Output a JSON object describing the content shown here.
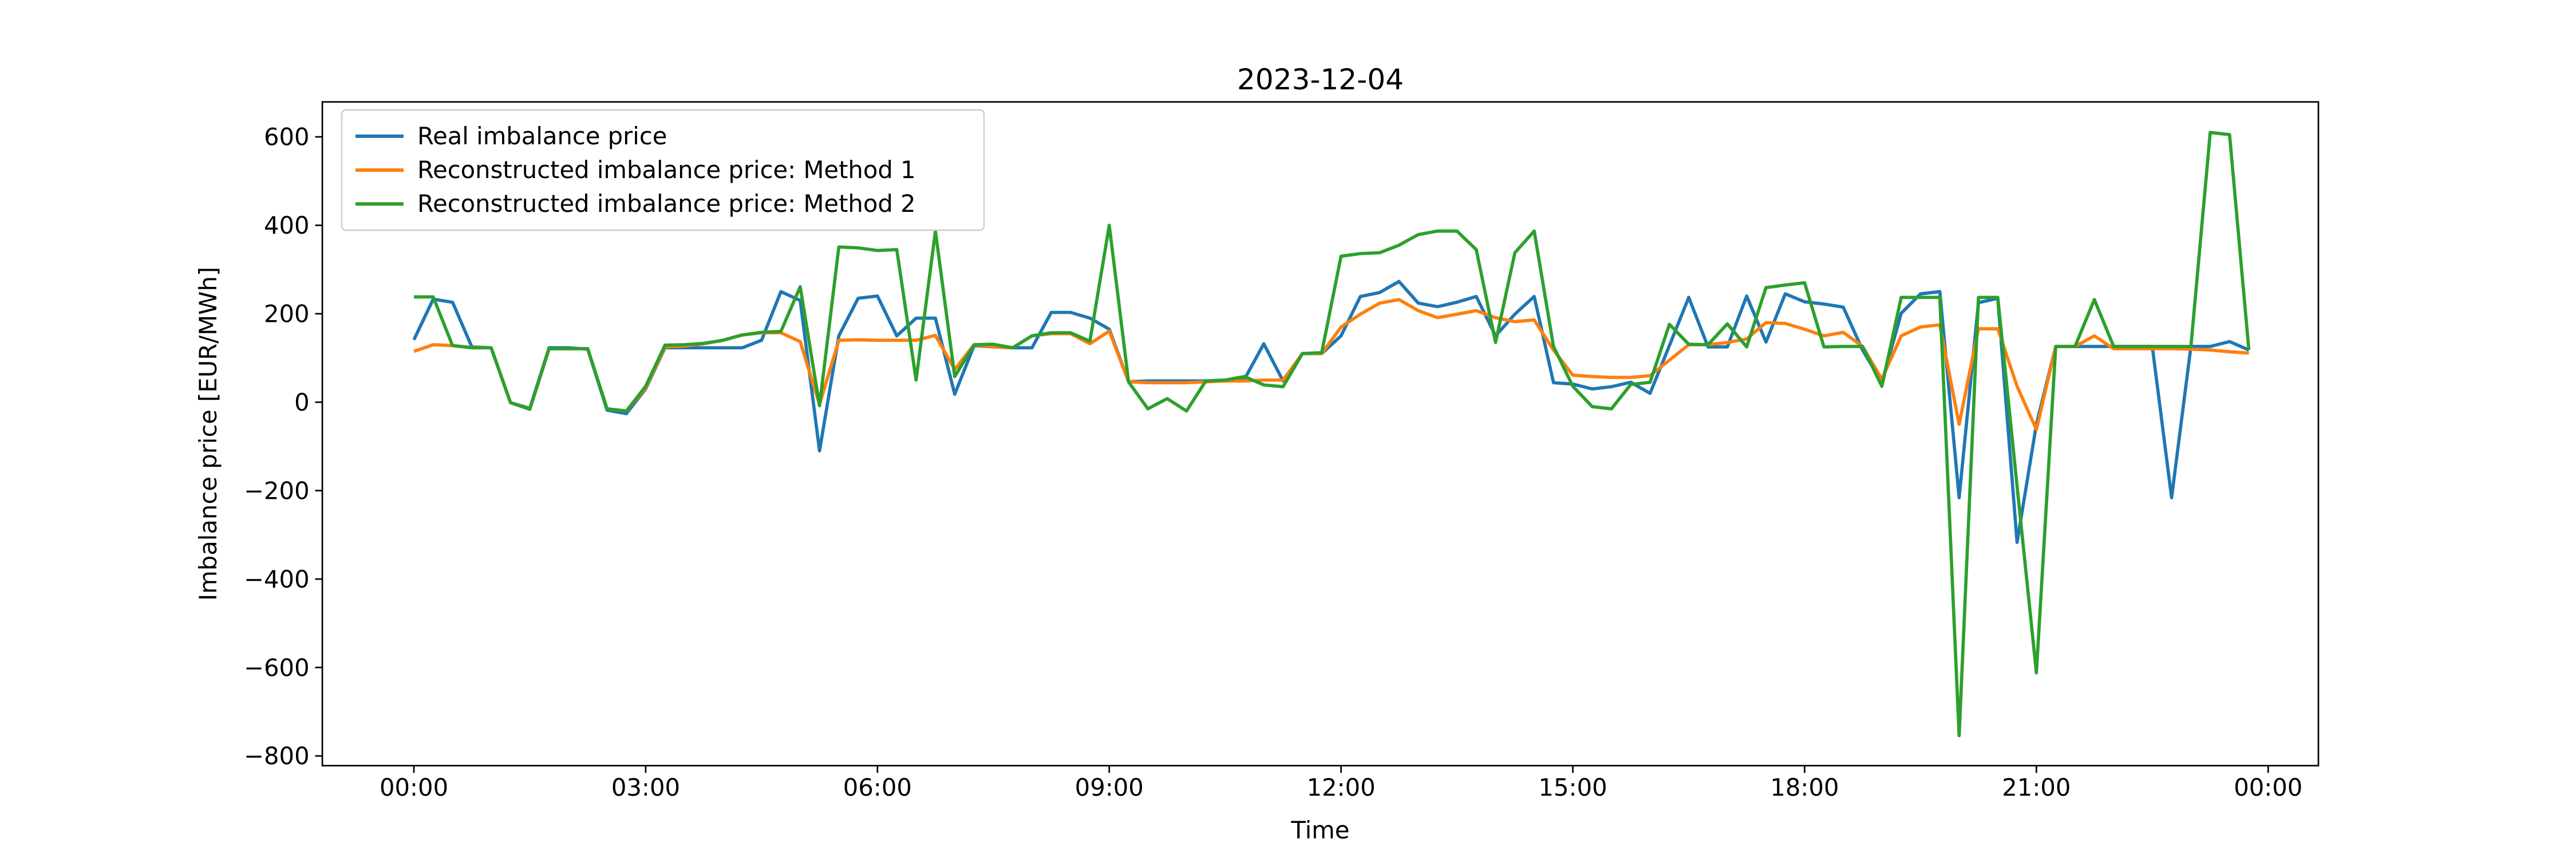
{
  "figure": {
    "background": "#ffffff",
    "spine_color": "#000000",
    "tick_color": "#000000",
    "legend_edge_color": "#cccccc",
    "legend_face_color": "#ffffff"
  },
  "chart_data": {
    "type": "line",
    "title": "2023-12-04",
    "xlabel": "Time",
    "ylabel": "Imbalance price [EUR/MWh]",
    "grid": false,
    "legend_position": "upper left",
    "ylim": [
      -822,
      679
    ],
    "xlim_hours": [
      -1.185,
      24.65
    ],
    "y_ticks": [
      600,
      400,
      200,
      0,
      -200,
      -400,
      -600,
      -800
    ],
    "x_tick_hours": [
      0,
      3,
      6,
      9,
      12,
      15,
      18,
      21,
      24
    ],
    "x_tick_labels": [
      "00:00",
      "03:00",
      "06:00",
      "09:00",
      "12:00",
      "15:00",
      "18:00",
      "21:00",
      "00:00"
    ],
    "x_step_minutes": 15,
    "times": [
      "00:00",
      "00:15",
      "00:30",
      "00:45",
      "01:00",
      "01:15",
      "01:30",
      "01:45",
      "02:00",
      "02:15",
      "02:30",
      "02:45",
      "03:00",
      "03:15",
      "03:30",
      "03:45",
      "04:00",
      "04:15",
      "04:30",
      "04:45",
      "05:00",
      "05:15",
      "05:30",
      "05:45",
      "06:00",
      "06:15",
      "06:30",
      "06:45",
      "07:00",
      "07:15",
      "07:30",
      "07:45",
      "08:00",
      "08:15",
      "08:30",
      "08:45",
      "09:00",
      "09:15",
      "09:30",
      "09:45",
      "10:00",
      "10:15",
      "10:30",
      "10:45",
      "11:00",
      "11:15",
      "11:30",
      "11:45",
      "12:00",
      "12:15",
      "12:30",
      "12:45",
      "13:00",
      "13:15",
      "13:30",
      "13:45",
      "14:00",
      "14:15",
      "14:30",
      "14:45",
      "15:00",
      "15:15",
      "15:30",
      "15:45",
      "16:00",
      "16:15",
      "16:30",
      "16:45",
      "17:00",
      "17:15",
      "17:30",
      "17:45",
      "18:00",
      "18:15",
      "18:30",
      "18:45",
      "19:00",
      "19:15",
      "19:30",
      "19:45",
      "20:00",
      "20:15",
      "20:30",
      "20:45",
      "21:00",
      "21:15",
      "21:30",
      "21:45",
      "22:00",
      "22:15",
      "22:30",
      "22:45",
      "23:00",
      "23:15",
      "23:30",
      "23:45"
    ],
    "series": [
      {
        "name": "Real imbalance price",
        "color": "#1f77b4",
        "values": [
          141,
          233,
          226,
          125,
          123,
          -1,
          -14,
          123,
          123,
          120,
          -18,
          -26,
          30,
          123,
          123,
          123,
          123,
          123,
          140,
          250,
          230,
          -110,
          150,
          235,
          240,
          150,
          190,
          190,
          18,
          128,
          125,
          123,
          123,
          203,
          203,
          190,
          165,
          46,
          48,
          48,
          48,
          48,
          50,
          52,
          132,
          48,
          110,
          110,
          150,
          239,
          248,
          273,
          224,
          216,
          226,
          239,
          150,
          199,
          239,
          44,
          41,
          30,
          35,
          45,
          20,
          128,
          237,
          125,
          125,
          240,
          136,
          245,
          227,
          222,
          215,
          118,
          44,
          201,
          245,
          250,
          -216,
          225,
          235,
          -317,
          -50,
          126,
          126,
          126,
          126,
          126,
          126,
          -216,
          126,
          126,
          137,
          118
        ]
      },
      {
        "name": "Reconstructed imbalance price: Method 1",
        "color": "#ff7f0e",
        "values": [
          115,
          130,
          128,
          124,
          123,
          -1,
          -16,
          121,
          121,
          121,
          -15,
          -20,
          32,
          125,
          127,
          132,
          140,
          152,
          157,
          157,
          137,
          -5,
          140,
          141,
          140,
          140,
          140,
          151,
          74,
          130,
          125,
          123,
          150,
          155,
          155,
          132,
          161,
          46,
          44,
          44,
          44,
          46,
          48,
          48,
          50,
          50,
          110,
          110,
          170,
          199,
          224,
          232,
          207,
          191,
          199,
          207,
          191,
          182,
          186,
          118,
          61,
          58,
          56,
          56,
          60,
          95,
          130,
          130,
          135,
          143,
          180,
          178,
          165,
          150,
          158,
          126,
          52,
          150,
          170,
          175,
          -50,
          166,
          166,
          36,
          -62,
          126,
          126,
          150,
          121,
          121,
          121,
          121,
          120,
          118,
          114,
          111
        ]
      },
      {
        "name": "Reconstructed imbalance price: Method 2",
        "color": "#2ca02c",
        "values": [
          238,
          238,
          128,
          123,
          123,
          -1,
          -16,
          121,
          121,
          121,
          -15,
          -20,
          36,
          129,
          130,
          133,
          140,
          152,
          158,
          160,
          261,
          -8,
          351,
          349,
          343,
          345,
          50,
          387,
          58,
          130,
          131,
          123,
          150,
          157,
          157,
          138,
          400,
          46,
          -15,
          8,
          -20,
          48,
          50,
          58,
          39,
          35,
          110,
          112,
          330,
          336,
          338,
          355,
          379,
          387,
          387,
          345,
          135,
          338,
          387,
          126,
          36,
          -10,
          -15,
          40,
          45,
          176,
          131,
          130,
          177,
          125,
          259,
          265,
          270,
          125,
          126,
          126,
          36,
          237,
          237,
          237,
          -754,
          237,
          237,
          -190,
          -612,
          126,
          126,
          232,
          126,
          126,
          126,
          126,
          126,
          610,
          605,
          118
        ]
      }
    ]
  }
}
